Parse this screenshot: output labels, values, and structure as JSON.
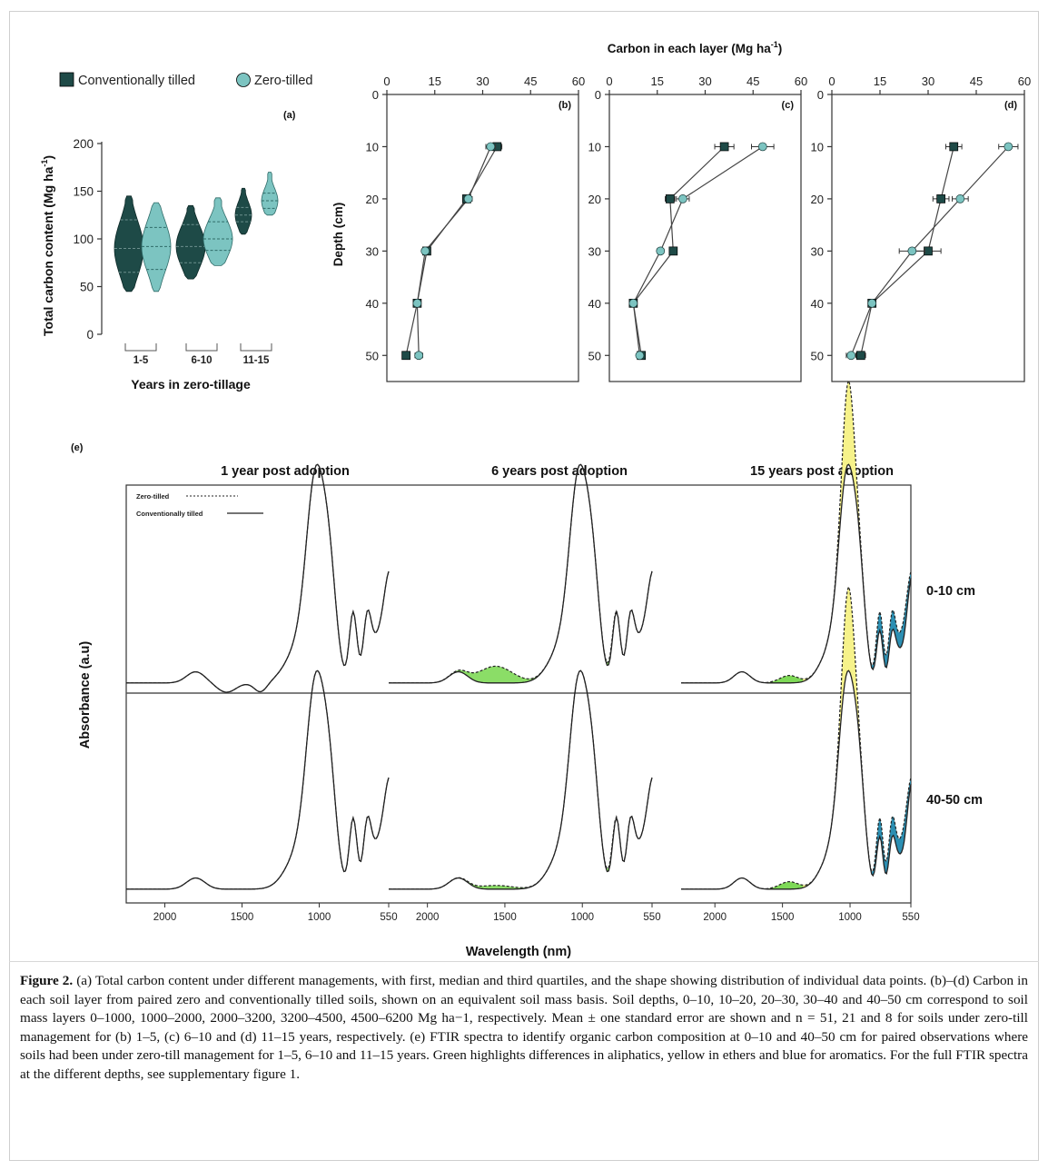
{
  "panel_a": {
    "label": "(a)",
    "legend": [
      {
        "name": "Conventionally tilled",
        "color": "#1e4a47"
      },
      {
        "name": "Zero-tilled",
        "color": "#7cc4c1"
      }
    ],
    "ylabel": "Total carbon content (Mg ha",
    "ylabel_sup": "-1",
    "xlabel": "Years in zero-tillage",
    "yticks": [
      "0",
      "50",
      "100",
      "150",
      "200"
    ],
    "groups": [
      "1-5",
      "6-10",
      "11-15"
    ]
  },
  "panels_bcd": {
    "title": "Carbon in each layer (Mg ha",
    "title_sup": "-1",
    "ylabel": "Depth (cm)",
    "xticks": [
      "0",
      "15",
      "30",
      "45",
      "60"
    ],
    "yticks": [
      "0",
      "10",
      "20",
      "30",
      "40",
      "50"
    ],
    "labels": [
      "(b)",
      "(c)",
      "(d)"
    ]
  },
  "panel_e": {
    "label": "(e)",
    "titles": [
      "1 year post adoption",
      "6 years post adoption",
      "15 years post adoption"
    ],
    "legend_zero": "Zero-tilled",
    "legend_conv": "Conventionally tilled",
    "row_labels": [
      "0-10 cm",
      "40-50 cm"
    ],
    "ylabel": "Absorbance (a.u)",
    "xlabel": "Wavelength (nm)",
    "xticks": [
      "2000",
      "1500",
      "1000",
      "550"
    ]
  },
  "chart_data": [
    {
      "type": "violin",
      "label": "(a)",
      "xlabel": "Years in zero-tillage",
      "ylabel": "Total carbon content (Mg ha-1)",
      "ylim": [
        0,
        200
      ],
      "categories": [
        "1-5",
        "6-10",
        "11-15"
      ],
      "series": [
        {
          "name": "Conventionally tilled",
          "min": [
            45,
            58,
            105
          ],
          "q1": [
            65,
            75,
            118
          ],
          "median": [
            90,
            92,
            125
          ],
          "q3": [
            120,
            115,
            133
          ],
          "max": [
            145,
            135,
            153
          ]
        },
        {
          "name": "Zero-tilled",
          "min": [
            45,
            72,
            125
          ],
          "q1": [
            68,
            88,
            132
          ],
          "median": [
            92,
            100,
            140
          ],
          "q3": [
            112,
            118,
            148
          ],
          "max": [
            138,
            143,
            170
          ]
        }
      ]
    },
    {
      "type": "line",
      "label": "(b)",
      "x_label": "Carbon in each layer (Mg ha-1)",
      "y_label": "Depth (cm)",
      "xlim": [
        0,
        60
      ],
      "ylim": [
        55,
        0
      ],
      "depth": [
        10,
        20,
        30,
        40,
        50
      ],
      "series": [
        {
          "name": "Conventionally tilled",
          "carbon": [
            34.5,
            25,
            12.5,
            9.5,
            6
          ],
          "se": [
            1.5,
            1.2,
            0.8,
            0.6,
            0.6
          ]
        },
        {
          "name": "Zero-tilled",
          "carbon": [
            32.5,
            25.5,
            12,
            9.5,
            10
          ],
          "se": [
            1.5,
            1.2,
            0.8,
            0.6,
            1.2
          ]
        }
      ]
    },
    {
      "type": "line",
      "label": "(c)",
      "x_label": "Carbon in each layer (Mg ha-1)",
      "y_label": "Depth (cm)",
      "xlim": [
        0,
        60
      ],
      "ylim": [
        55,
        0
      ],
      "depth": [
        10,
        20,
        30,
        40,
        50
      ],
      "series": [
        {
          "name": "Conventionally tilled",
          "carbon": [
            36,
            19,
            20,
            7.5,
            10
          ],
          "se": [
            3,
            1.5,
            1,
            0.6,
            0.8
          ]
        },
        {
          "name": "Zero-tilled",
          "carbon": [
            48,
            23,
            16,
            7.5,
            9.5
          ],
          "se": [
            3.5,
            2,
            1,
            0.6,
            0.8
          ]
        }
      ]
    },
    {
      "type": "line",
      "label": "(d)",
      "x_label": "Carbon in each layer (Mg ha-1)",
      "y_label": "Depth (cm)",
      "xlim": [
        0,
        60
      ],
      "ylim": [
        55,
        0
      ],
      "depth": [
        10,
        20,
        30,
        40,
        50
      ],
      "series": [
        {
          "name": "Conventionally tilled",
          "carbon": [
            38,
            34,
            30,
            12.5,
            9
          ],
          "se": [
            2.5,
            2.5,
            4,
            0.8,
            1.5
          ]
        },
        {
          "name": "Zero-tilled",
          "carbon": [
            55,
            40,
            25,
            12.5,
            6
          ],
          "se": [
            3,
            2.5,
            4,
            0.8,
            1.5
          ]
        }
      ]
    }
  ],
  "caption": {
    "fig": "Figure 2.",
    "text": " (a) Total carbon content under different managements, with first, median and third quartiles, and the shape showing distribution of individual data points. (b)–(d) Carbon in each soil layer from paired zero and conventionally tilled soils, shown on an equivalent soil mass basis. Soil depths, 0–10, 10–20, 20–30, 30–40 and 40–50 cm correspond to soil mass layers 0–1000, 1000–2000, 2000–3200, 3200–4500, 4500–6200 Mg ha−1, respectively. Mean ± one standard error are shown and n = 51, 21 and 8 for soils under zero-till management for (b) 1–5, (c) 6–10 and (d) 11–15 years, respectively. (e) FTIR spectra to identify organic carbon composition at 0–10 and 40–50 cm for paired observations where soils had been under zero-till management for 1–5, 6–10 and 11–15 years. Green highlights differences in aliphatics, yellow in ethers and blue for aromatics. For the full FTIR spectra at the different depths, see supplementary figure 1."
  }
}
